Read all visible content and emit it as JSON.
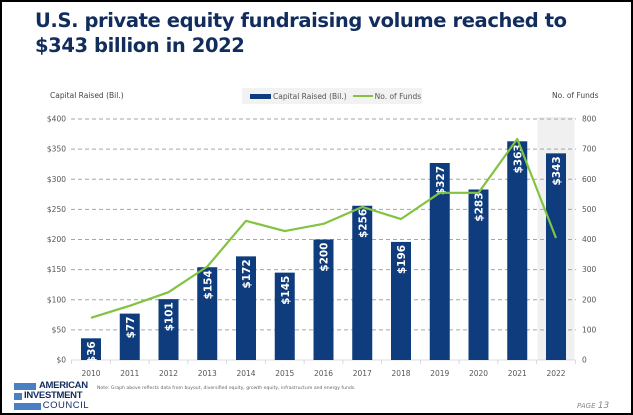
{
  "title": "U.S. private equity fundraising volume reached to $343 billion in 2022",
  "note": "Note: Graph above reflects data from buyout, diversified equity, growth equity, infrastructure and energy funds.",
  "logo": {
    "line1": "AMERICAN",
    "line2": "INVESTMENT",
    "line3": "COUNCIL"
  },
  "page": {
    "label": "PAGE",
    "number": "13"
  },
  "colors": {
    "bar": "#0f3c7c",
    "line": "#82c342",
    "title": "#112d5e",
    "highlight_bg": "#f0f0f0"
  },
  "chart_data": {
    "type": "bar+line",
    "title": "U.S. private equity fundraising volume reached to $343 billion in 2022",
    "categories": [
      "2010",
      "2011",
      "2012",
      "2013",
      "2014",
      "2015",
      "2016",
      "2017",
      "2018",
      "2019",
      "2020",
      "2021",
      "2022"
    ],
    "series": [
      {
        "name": "Capital Raised (Bil.)",
        "type": "bar",
        "axis": "left",
        "values": [
          36,
          77,
          101,
          154,
          172,
          145,
          200,
          256,
          196,
          327,
          283,
          363,
          343
        ],
        "labels": [
          "$36",
          "$77",
          "$101",
          "$154",
          "$172",
          "$145",
          "$200",
          "$256",
          "$196",
          "$327",
          "$283",
          "$363",
          "$343"
        ]
      },
      {
        "name": "No. of Funds",
        "type": "line",
        "axis": "right",
        "values": [
          140,
          180,
          225,
          310,
          462,
          428,
          452,
          508,
          468,
          555,
          555,
          734,
          405
        ]
      }
    ],
    "ylabel_left": "Capital Raised (Bil.)",
    "ylabel_right": "No. of Funds",
    "ylim_left": [
      0,
      400
    ],
    "ylim_right": [
      0,
      800
    ],
    "yticks_left": [
      "$0",
      "$50",
      "$100",
      "$150",
      "$200",
      "$250",
      "$300",
      "$350",
      "$400"
    ],
    "yticks_right": [
      "0",
      "100",
      "200",
      "300",
      "400",
      "500",
      "600",
      "700",
      "800"
    ],
    "highlighted_category": "2022",
    "grid": true,
    "legend": "top-center",
    "legend_entries": [
      "Capital Raised (Bil.)",
      "No. of Funds"
    ]
  }
}
